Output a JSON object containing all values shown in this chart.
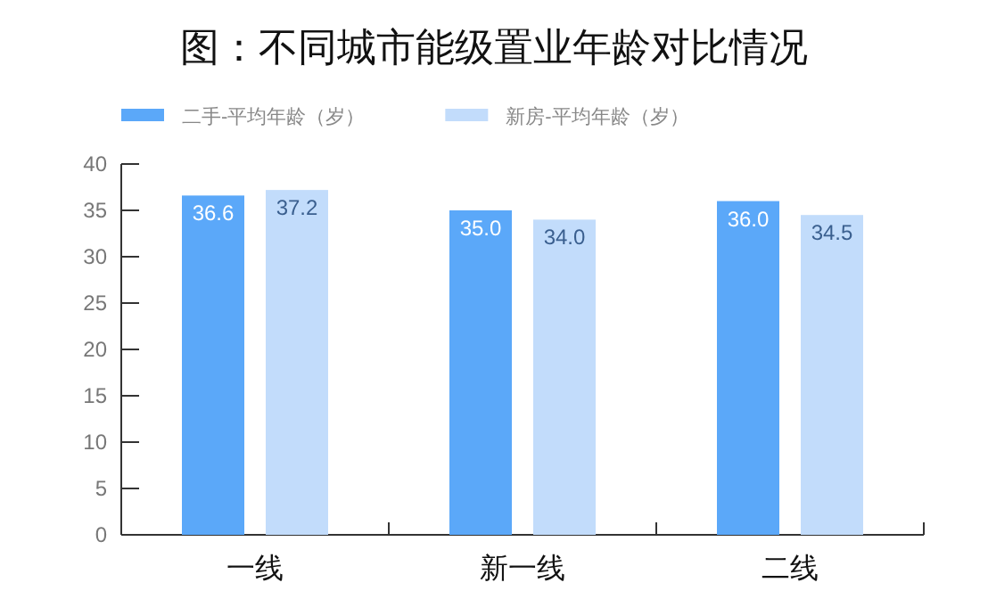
{
  "chart_data": {
    "type": "bar",
    "title": "图：不同城市能级置业年龄对比情况",
    "categories": [
      "一线",
      "新一线",
      "二线"
    ],
    "series": [
      {
        "name": "二手-平均年龄（岁）",
        "color": "#5ba8f9",
        "values": [
          36.6,
          35.0,
          36.0
        ],
        "value_labels": [
          "36.6",
          "35.0",
          "36.0"
        ]
      },
      {
        "name": "新房-平均年龄（岁）",
        "color": "#c2dcfb",
        "values": [
          37.2,
          34.0,
          34.5
        ],
        "value_labels": [
          "37.2",
          "34.0",
          "34.5"
        ]
      }
    ],
    "ylim": [
      0,
      40
    ],
    "yticks": [
      0,
      5,
      10,
      15,
      20,
      25,
      30,
      35,
      40
    ],
    "legend": "top left",
    "grid": false
  }
}
